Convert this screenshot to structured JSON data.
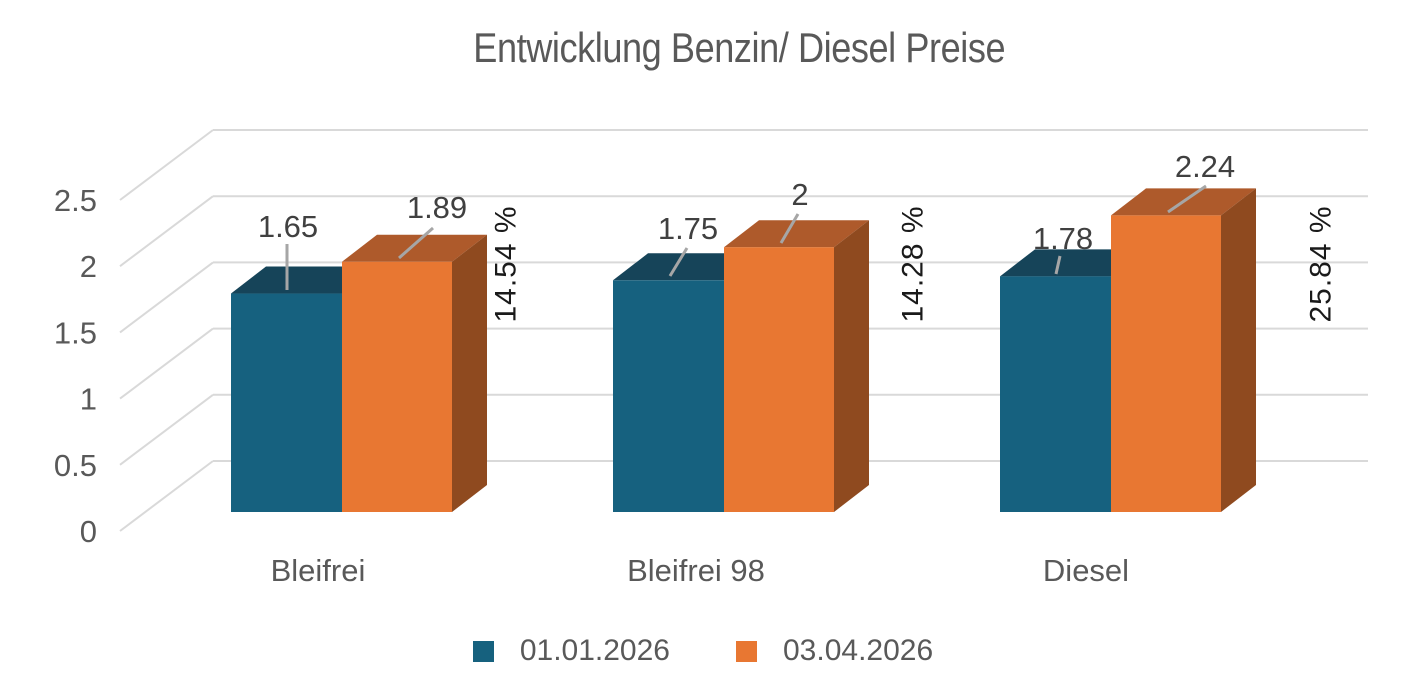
{
  "title": "Entwicklung Benzin/ Diesel Preise",
  "chart_data": {
    "type": "bar",
    "style": "3d-column",
    "title": "Entwicklung Benzin/ Diesel Preise",
    "categories": [
      "Bleifrei",
      "Bleifrei 98",
      "Diesel"
    ],
    "series": [
      {
        "name": "01.01.2026",
        "values": [
          1.65,
          1.75,
          1.78
        ],
        "labels": [
          "1.65",
          "1.75",
          "1.78"
        ],
        "color": "#16617E"
      },
      {
        "name": "03.04.2026",
        "values": [
          1.89,
          2,
          2.24
        ],
        "labels": [
          "1.89",
          "2",
          "2.24"
        ],
        "color": "#E87732"
      }
    ],
    "pct_change_labels": [
      "14.54 %",
      "14.28 %",
      "25.84 %"
    ],
    "xlabel": "",
    "ylabel": "",
    "ylim": [
      0,
      2.5
    ],
    "ytick_values": [
      0,
      0.5,
      1,
      1.5,
      2,
      2.5
    ],
    "ytick_labels": [
      "0",
      "0.5",
      "1",
      "1.5",
      "2",
      "2.5"
    ],
    "grid": true,
    "legend_position": "bottom"
  },
  "colors": {
    "series1_front": "#16617F",
    "series1_top": "#164459",
    "series2_front": "#E87732",
    "series2_top": "#AE5A2B",
    "series2_side": "#8F4A1F",
    "gridline": "#D9D9D9",
    "leader_line": "#A6A6A6",
    "axis_text": "#595959",
    "data_label_text": "#404040",
    "pct_label_text": "#1A1A1A",
    "title_text": "#595959",
    "background": "#FFFFFF"
  }
}
